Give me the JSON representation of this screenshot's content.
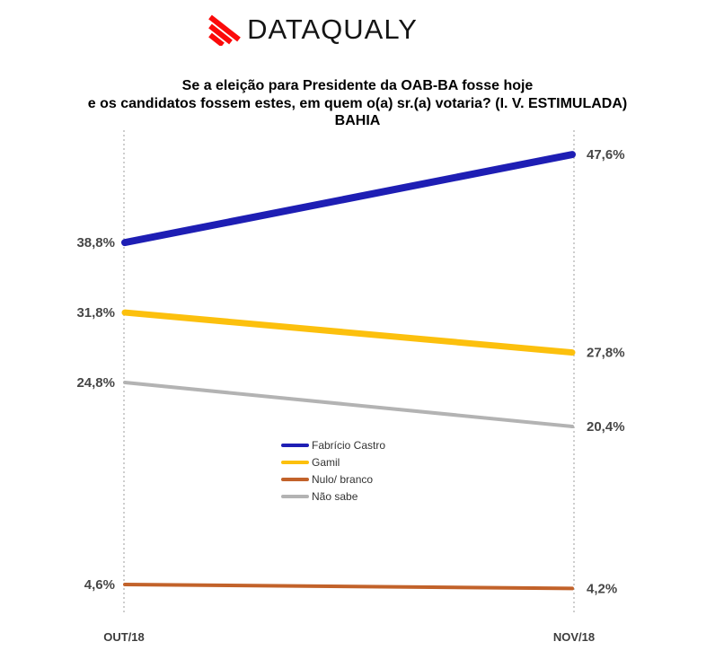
{
  "logo": {
    "text": "DATAQUALY",
    "icon": "diagonal-stripes-icon",
    "accent_color": "#fb0a0a",
    "text_color": "#141414"
  },
  "chart_data": {
    "type": "line",
    "title": "Se a eleição para Presidente da OAB-BA fosse hoje e os candidatos fossem estes, em quem o(a) sr.(a) votaria? (I. V. ESTIMULADA) BAHIA",
    "title_lines": [
      "Se a eleição para Presidente da OAB-BA fosse hoje",
      "e os candidatos fossem estes, em quem o(a) sr.(a) votaria? (I. V. ESTIMULADA)",
      "BAHIA"
    ],
    "categories": [
      "OUT/18",
      "NOV/18"
    ],
    "series": [
      {
        "name": "Fabrício Castro",
        "values": [
          38.8,
          47.6
        ],
        "labels": [
          "38,8%",
          "47,6%"
        ],
        "color": "#1e1eb4",
        "thickness": 8
      },
      {
        "name": "Gamil",
        "values": [
          31.8,
          27.8
        ],
        "labels": [
          "31,8%",
          "27,8%"
        ],
        "color": "#fcc00d",
        "thickness": 7
      },
      {
        "name": "Nulo/ branco",
        "values": [
          4.6,
          4.2
        ],
        "labels": [
          "4,6%",
          "4,2%"
        ],
        "color": "#c2622a",
        "thickness": 4
      },
      {
        "name": "Não sabe",
        "values": [
          24.8,
          20.4
        ],
        "labels": [
          "24,8%",
          "20,4%"
        ],
        "color": "#b3b3b3",
        "thickness": 4
      }
    ],
    "xlabel": "",
    "ylabel": "",
    "ylim": [
      0,
      50
    ],
    "grid": false,
    "legend_position": "center-middle",
    "value_label_color": "#474747",
    "axis_line_color": "#9e9e9e"
  }
}
